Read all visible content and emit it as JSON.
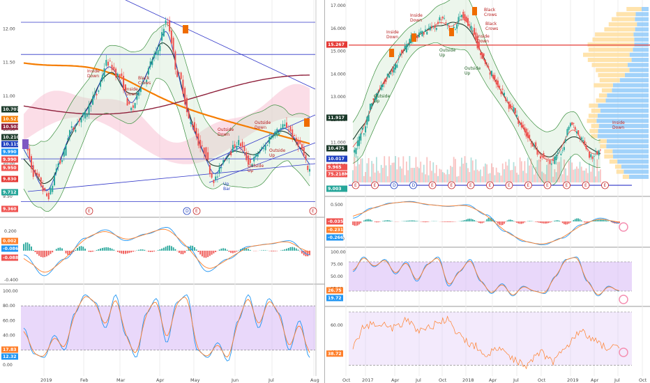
{
  "colors": {
    "up": "#26a69a",
    "down": "#ef5350",
    "ma_orange": "#f57c00",
    "ma_maroon": "#8e1f3a",
    "ma_black": "#1b3a2a",
    "ma_blue": "#1e3fbf",
    "bb": "#388e3c",
    "bb_fill": "#c8e6c9",
    "cloud": "#f8bbd0",
    "stoch_band": "#d7b8f5",
    "macd_line": "#2196f3",
    "signal_line": "#ff7f2a",
    "hline_red": "#e53935",
    "hline_blue": "#2f35c8"
  },
  "left": {
    "price_axis": [
      "12.00",
      "11.50",
      "11.00",
      "10.50",
      "10.00",
      "9.50"
    ],
    "price_badges": [
      {
        "label": "10.707",
        "color": "#1b3a2a"
      },
      {
        "label": "10.521",
        "color": "#f57c00"
      },
      {
        "label": "10.503",
        "color": "#8e1f3a"
      },
      {
        "label": "10.210",
        "color": "#1b3a2a"
      },
      {
        "label": "10.119",
        "color": "#1e3fbf"
      },
      {
        "label": "9.990",
        "color": "#2196f3"
      },
      {
        "label": "9.990",
        "color": "#ef5350"
      },
      {
        "label": "9.950",
        "color": "#ef5350"
      },
      {
        "label": "9.830",
        "color": "#e53935"
      },
      {
        "label": "9.712",
        "color": "#26a69a"
      },
      {
        "label": "9.360",
        "color": "#ef5350"
      }
    ],
    "macd_axis": [
      "0.200",
      "0.000",
      "-0.400"
    ],
    "macd_badges": [
      {
        "label": "0.002",
        "color": "#ff7f2a"
      },
      {
        "label": "-0.086",
        "color": "#2196f3"
      },
      {
        "label": "-0.088",
        "color": "#ef5350"
      }
    ],
    "stoch_axis": [
      "100.00",
      "80.00",
      "60.00",
      "40.00",
      "20.00",
      "0.00"
    ],
    "stoch_badges": [
      {
        "label": "17.83",
        "color": "#ff7f2a"
      },
      {
        "label": "12.32",
        "color": "#2196f3"
      }
    ],
    "time_axis": [
      "2019",
      "Feb",
      "Mar",
      "Apr",
      "May",
      "Jun",
      "Jul",
      "Aug"
    ],
    "annotations": [
      {
        "text": "Inside\nDown"
      },
      {
        "text": "Inside\nDown"
      },
      {
        "text": "Black\nCrows"
      },
      {
        "text": "Outside\nDown"
      },
      {
        "text": "Outside\nDown"
      },
      {
        "text": "Outside\nUp"
      },
      {
        "text": "Outside\nUp"
      },
      {
        "text": "Up\nBar"
      }
    ],
    "event_markers": [
      "E",
      "D",
      "E",
      "E"
    ]
  },
  "right": {
    "price_axis": [
      "17.000",
      "16.000",
      "15.000",
      "14.000",
      "13.000",
      "12.000",
      "11.000",
      "10.000",
      "9.000"
    ],
    "price_badges": [
      {
        "label": "15.267",
        "color": "#e53935"
      },
      {
        "label": "11.917",
        "color": "#1b3a2a"
      },
      {
        "label": "10.475",
        "color": "#1b3a2a"
      },
      {
        "label": "10.017",
        "color": "#1e3fbf"
      },
      {
        "label": "9.965",
        "color": "#ef5350"
      },
      {
        "label": "75.218M",
        "color": "#ef5350"
      },
      {
        "label": "9.003",
        "color": "#26a69a"
      }
    ],
    "macd_axis": [
      "0.500",
      "0.000",
      "-0.500"
    ],
    "macd_badges": [
      {
        "label": "-0.035",
        "color": "#ef5350"
      },
      {
        "label": "-0.231",
        "color": "#ff7f2a"
      },
      {
        "label": "-0.266",
        "color": "#2196f3"
      }
    ],
    "stoch_axis": [
      "100.00",
      "75.00",
      "50.00",
      "25.00"
    ],
    "stoch_badges": [
      {
        "label": "26.75",
        "color": "#ff7f2a"
      },
      {
        "label": "19.72",
        "color": "#2196f3"
      }
    ],
    "rsi_axis": [
      "60.00",
      "40.00"
    ],
    "rsi_badges": [
      {
        "label": "38.72",
        "color": "#ff7f2a"
      }
    ],
    "time_axis": [
      "Oct",
      "2017",
      "Apr",
      "Jul",
      "Oct",
      "2018",
      "Apr",
      "Jul",
      "Oct",
      "2019",
      "Apr",
      "Jul",
      "Oct"
    ],
    "annotations": [
      {
        "text": "Inside\nDown"
      },
      {
        "text": "Inside\nDown"
      },
      {
        "text": "Black\nCrows"
      },
      {
        "text": "Black\nCrows"
      },
      {
        "text": "Outside\nUp"
      },
      {
        "text": "Outside\nUp"
      },
      {
        "text": "Outside\nUp"
      },
      {
        "text": "Inside\nDown"
      },
      {
        "text": "Inside\nDown"
      }
    ],
    "event_markers": [
      "E",
      "E",
      "D",
      "D",
      "E",
      "E",
      "E",
      "E",
      "E",
      "E",
      "E",
      "E",
      "E",
      "E"
    ]
  }
}
